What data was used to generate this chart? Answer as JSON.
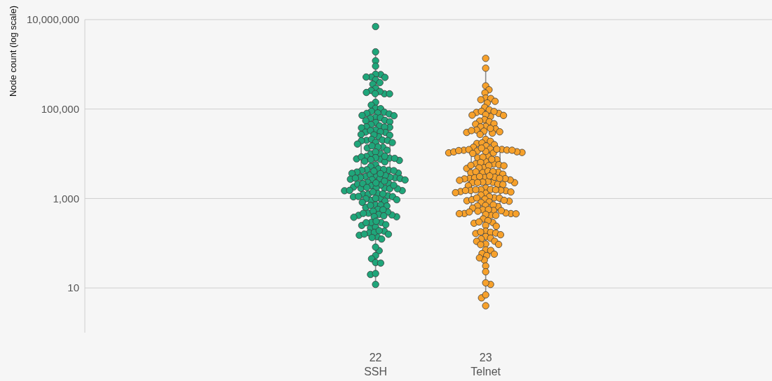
{
  "chart_data": {
    "type": "box",
    "ylabel": "Node count (log scale)",
    "categories": [
      "22\nSSH",
      "23\nTelnet"
    ],
    "log": true,
    "ylim": [
      1,
      10000000
    ],
    "yticks": [
      {
        "value": 10,
        "label": "10"
      },
      {
        "value": 1000,
        "label": "1,000"
      },
      {
        "value": 100000,
        "label": "100,000"
      },
      {
        "value": 10000000,
        "label": "10,000,000"
      }
    ],
    "grid": "y",
    "marker": "circle",
    "boxes": [
      {
        "low": 12,
        "q1": 880,
        "median": 3400,
        "q3": 31000,
        "high": 1900000
      },
      {
        "low": 6,
        "q1": 530,
        "median": 2800,
        "q3": 11800,
        "high": 820000
      }
    ],
    "series": [
      {
        "type": "scatter",
        "color": "#1fa67a",
        "x": [
          "22\nSSH",
          "22\nSSH",
          "22\nSSH",
          "22\nSSH",
          "22\nSSH",
          "22\nSSH",
          "22\nSSH",
          "22\nSSH",
          "22\nSSH",
          "22\nSSH",
          "22\nSSH",
          "22\nSSH",
          "22\nSSH",
          "22\nSSH",
          "22\nSSH",
          "22\nSSH",
          "22\nSSH",
          "22\nSSH",
          "22\nSSH",
          "22\nSSH",
          "22\nSSH",
          "22\nSSH",
          "22\nSSH",
          "22\nSSH",
          "22\nSSH",
          "22\nSSH",
          "22\nSSH",
          "22\nSSH",
          "22\nSSH",
          "22\nSSH",
          "22\nSSH",
          "22\nSSH",
          "22\nSSH",
          "22\nSSH",
          "22\nSSH",
          "22\nSSH",
          "22\nSSH",
          "22\nSSH",
          "22\nSSH",
          "22\nSSH",
          "22\nSSH",
          "22\nSSH",
          "22\nSSH",
          "22\nSSH",
          "22\nSSH",
          "22\nSSH",
          "22\nSSH",
          "22\nSSH",
          "22\nSSH",
          "22\nSSH",
          "22\nSSH",
          "22\nSSH",
          "22\nSSH",
          "22\nSSH",
          "22\nSSH",
          "22\nSSH",
          "22\nSSH",
          "22\nSSH",
          "22\nSSH",
          "22\nSSH",
          "22\nSSH",
          "22\nSSH",
          "22\nSSH",
          "22\nSSH",
          "22\nSSH",
          "22\nSSH",
          "22\nSSH",
          "22\nSSH",
          "22\nSSH",
          "22\nSSH",
          "22\nSSH",
          "22\nSSH",
          "22\nSSH",
          "22\nSSH",
          "22\nSSH",
          "22\nSSH",
          "22\nSSH",
          "22\nSSH",
          "22\nSSH",
          "22\nSSH",
          "22\nSSH",
          "22\nSSH",
          "22\nSSH",
          "22\nSSH",
          "22\nSSH",
          "22\nSSH",
          "22\nSSH",
          "22\nSSH",
          "22\nSSH",
          "22\nSSH",
          "22\nSSH",
          "22\nSSH",
          "22\nSSH",
          "22\nSSH",
          "22\nSSH",
          "22\nSSH",
          "22\nSSH",
          "22\nSSH",
          "22\nSSH",
          "22\nSSH",
          "22\nSSH",
          "22\nSSH",
          "22\nSSH",
          "22\nSSH",
          "22\nSSH",
          "22\nSSH",
          "22\nSSH",
          "22\nSSH",
          "22\nSSH",
          "22\nSSH",
          "22\nSSH",
          "22\nSSH",
          "22\nSSH",
          "22\nSSH",
          "22\nSSH",
          "22\nSSH",
          "22\nSSH",
          "22\nSSH",
          "22\nSSH",
          "22\nSSH",
          "22\nSSH",
          "22\nSSH",
          "22\nSSH",
          "22\nSSH",
          "22\nSSH",
          "22\nSSH",
          "22\nSSH",
          "22\nSSH",
          "22\nSSH",
          "22\nSSH",
          "22\nSSH",
          "22\nSSH",
          "22\nSSH",
          "22\nSSH",
          "22\nSSH",
          "22\nSSH",
          "22\nSSH",
          "22\nSSH",
          "22\nSSH",
          "22\nSSH",
          "22\nSSH",
          "22\nSSH",
          "22\nSSH",
          "22\nSSH",
          "22\nSSH",
          "22\nSSH",
          "22\nSSH",
          "22\nSSH",
          "22\nSSH",
          "22\nSSH",
          "22\nSSH",
          "22\nSSH",
          "22\nSSH",
          "22\nSSH",
          "22\nSSH",
          "22\nSSH",
          "22\nSSH",
          "22\nSSH",
          "22\nSSH",
          "22\nSSH",
          "22\nSSH",
          "22\nSSH",
          "22\nSSH",
          "22\nSSH",
          "22\nSSH",
          "22\nSSH",
          "22\nSSH",
          "22\nSSH",
          "22\nSSH",
          "22\nSSH",
          "22\nSSH",
          "22\nSSH",
          "22\nSSH",
          "22\nSSH",
          "22\nSSH",
          "22\nSSH",
          "22\nSSH",
          "22\nSSH",
          "22\nSSH",
          "22\nSSH",
          "22\nSSH",
          "22\nSSH",
          "22\nSSH",
          "22\nSSH",
          "22\nSSH",
          "22\nSSH"
        ],
        "values": [
          7000000,
          1900000,
          1200000,
          910000,
          590000,
          600000,
          520000,
          520000,
          510000,
          450000,
          390000,
          360000,
          290000,
          260000,
          235000,
          220000,
          247000,
          219000,
          221000,
          142000,
          123000,
          104000,
          102000,
          89000,
          82000,
          85000,
          78000,
          80000,
          72000,
          71000,
          65000,
          64000,
          62000,
          56000,
          55000,
          52000,
          50000,
          45000,
          40000,
          39000,
          38000,
          42000,
          39500,
          34000,
          30000,
          31000,
          30500,
          33000,
          24000,
          26000,
          26500,
          27000,
          20000,
          20200,
          19800,
          19500,
          21000,
          16500,
          18000,
          17800,
          14000,
          13500,
          14200,
          15000,
          10000,
          10100,
          11000,
          12000,
          7500,
          8200,
          6600,
          8000,
          8700,
          7100,
          7700,
          8500,
          6800,
          7900,
          8800,
          7400,
          5700,
          5200,
          4300,
          4400,
          4250,
          3700,
          3900,
          2900,
          3200,
          2800,
          2600,
          3100,
          2750,
          3400,
          3650,
          4600,
          4200,
          3000,
          2700,
          3300,
          4100,
          4450,
          3600,
          2650,
          2950,
          2850,
          2300,
          1800,
          1500,
          1700,
          2100,
          1650,
          2000,
          1690,
          2150,
          2450,
          1930,
          1710,
          2160,
          1660,
          1980,
          1760,
          2230,
          1490,
          1300,
          1150,
          910,
          1000,
          1240,
          1100,
          1520,
          1250,
          1090,
          1400,
          990,
          1270,
          1110,
          870,
          1010,
          820,
          940,
          720,
          680,
          630,
          715,
          700,
          570,
          420,
          470,
          390,
          440,
          520,
          395,
          430,
          500,
          465,
          380,
          560,
          410,
          290,
          220,
          292,
          250,
          288,
          230,
          310,
          260,
          170,
          140,
          186,
          124,
          159,
          175,
          151,
          134,
          191,
          160,
          68,
          82,
          53,
          45,
          37,
          36,
          20,
          21,
          12
        ]
      },
      {
        "type": "scatter",
        "color": "#f7a12b",
        "x": [
          "23\nTelnet",
          "23\nTelnet",
          "23\nTelnet",
          "23\nTelnet",
          "23\nTelnet",
          "23\nTelnet",
          "23\nTelnet",
          "23\nTelnet",
          "23\nTelnet",
          "23\nTelnet",
          "23\nTelnet",
          "23\nTelnet",
          "23\nTelnet",
          "23\nTelnet",
          "23\nTelnet",
          "23\nTelnet",
          "23\nTelnet",
          "23\nTelnet",
          "23\nTelnet",
          "23\nTelnet",
          "23\nTelnet",
          "23\nTelnet",
          "23\nTelnet",
          "23\nTelnet",
          "23\nTelnet",
          "23\nTelnet",
          "23\nTelnet",
          "23\nTelnet",
          "23\nTelnet",
          "23\nTelnet",
          "23\nTelnet",
          "23\nTelnet",
          "23\nTelnet",
          "23\nTelnet",
          "23\nTelnet",
          "23\nTelnet",
          "23\nTelnet",
          "23\nTelnet",
          "23\nTelnet",
          "23\nTelnet",
          "23\nTelnet",
          "23\nTelnet",
          "23\nTelnet",
          "23\nTelnet",
          "23\nTelnet",
          "23\nTelnet",
          "23\nTelnet",
          "23\nTelnet",
          "23\nTelnet",
          "23\nTelnet",
          "23\nTelnet",
          "23\nTelnet",
          "23\nTelnet",
          "23\nTelnet",
          "23\nTelnet",
          "23\nTelnet",
          "23\nTelnet",
          "23\nTelnet",
          "23\nTelnet",
          "23\nTelnet",
          "23\nTelnet",
          "23\nTelnet",
          "23\nTelnet",
          "23\nTelnet",
          "23\nTelnet",
          "23\nTelnet",
          "23\nTelnet",
          "23\nTelnet",
          "23\nTelnet",
          "23\nTelnet",
          "23\nTelnet",
          "23\nTelnet",
          "23\nTelnet",
          "23\nTelnet",
          "23\nTelnet",
          "23\nTelnet",
          "23\nTelnet",
          "23\nTelnet",
          "23\nTelnet",
          "23\nTelnet",
          "23\nTelnet",
          "23\nTelnet",
          "23\nTelnet",
          "23\nTelnet",
          "23\nTelnet",
          "23\nTelnet",
          "23\nTelnet",
          "23\nTelnet",
          "23\nTelnet",
          "23\nTelnet",
          "23\nTelnet",
          "23\nTelnet",
          "23\nTelnet",
          "23\nTelnet",
          "23\nTelnet",
          "23\nTelnet",
          "23\nTelnet",
          "23\nTelnet",
          "23\nTelnet",
          "23\nTelnet",
          "23\nTelnet",
          "23\nTelnet",
          "23\nTelnet",
          "23\nTelnet",
          "23\nTelnet",
          "23\nTelnet",
          "23\nTelnet",
          "23\nTelnet",
          "23\nTelnet",
          "23\nTelnet",
          "23\nTelnet",
          "23\nTelnet",
          "23\nTelnet",
          "23\nTelnet",
          "23\nTelnet",
          "23\nTelnet",
          "23\nTelnet",
          "23\nTelnet",
          "23\nTelnet",
          "23\nTelnet",
          "23\nTelnet",
          "23\nTelnet",
          "23\nTelnet",
          "23\nTelnet",
          "23\nTelnet",
          "23\nTelnet",
          "23\nTelnet",
          "23\nTelnet",
          "23\nTelnet",
          "23\nTelnet",
          "23\nTelnet",
          "23\nTelnet",
          "23\nTelnet",
          "23\nTelnet",
          "23\nTelnet",
          "23\nTelnet",
          "23\nTelnet",
          "23\nTelnet",
          "23\nTelnet",
          "23\nTelnet",
          "23\nTelnet",
          "23\nTelnet",
          "23\nTelnet",
          "23\nTelnet",
          "23\nTelnet",
          "23\nTelnet",
          "23\nTelnet",
          "23\nTelnet",
          "23\nTelnet",
          "23\nTelnet",
          "23\nTelnet",
          "23\nTelnet",
          "23\nTelnet",
          "23\nTelnet",
          "23\nTelnet",
          "23\nTelnet",
          "23\nTelnet",
          "23\nTelnet",
          "23\nTelnet",
          "23\nTelnet",
          "23\nTelnet",
          "23\nTelnet",
          "23\nTelnet",
          "23\nTelnet",
          "23\nTelnet",
          "23\nTelnet",
          "23\nTelnet",
          "23\nTelnet",
          "23\nTelnet",
          "23\nTelnet",
          "23\nTelnet",
          "23\nTelnet",
          "23\nTelnet",
          "23\nTelnet",
          "23\nTelnet",
          "23\nTelnet",
          "23\nTelnet",
          "23\nTelnet",
          "23\nTelnet",
          "23\nTelnet",
          "23\nTelnet",
          "23\nTelnet"
        ],
        "values": [
          1360000,
          820000,
          330000,
          270000,
          230000,
          176000,
          172000,
          162000,
          149000,
          137000,
          109000,
          96000,
          80000,
          88000,
          84000,
          89000,
          68000,
          73000,
          72000,
          75000,
          58000,
          54000,
          52000,
          46000,
          47000,
          41000,
          40000,
          36000,
          31000,
          30000,
          34000,
          29000,
          33000,
          32000,
          37000,
          27000,
          21000,
          19000,
          17000,
          17500,
          16000,
          15000,
          14000,
          10500,
          12000,
          11000,
          12500,
          10700,
          11800,
          11600,
          12800,
          10400,
          8900,
          12100,
          11300,
          12700,
          11100,
          12400,
          12000,
          13400,
          10200,
          8100,
          7400,
          5900,
          6700,
          5700,
          8400,
          7500,
          6000,
          4700,
          5400,
          6400,
          5500,
          4900,
          5450,
          4850,
          3900,
          3800,
          4100,
          3750,
          4000,
          3950,
          3500,
          2800,
          2260,
          2950,
          2300,
          2900,
          2400,
          3100,
          2100,
          2600,
          2780,
          2750,
          2250,
          3000,
          2550,
          2050,
          2320,
          3200,
          2270,
          2820,
          1720,
          1490,
          1320,
          1580,
          1930,
          1520,
          1430,
          1570,
          1530,
          1350,
          1590,
          1200,
          1510,
          1400,
          1560,
          1040,
          1100,
          890,
          870,
          1020,
          970,
          840,
          940,
          910,
          1030,
          810,
          660,
          700,
          680,
          610,
          720,
          540,
          460,
          475,
          560,
          455,
          420,
          520,
          565,
          462,
          418,
          500,
          458,
          440,
          535,
          350,
          280,
          300,
          290,
          240,
          320,
          250,
          165,
          186,
          175,
          141,
          125,
          169,
          179,
          155,
          130,
          111,
          110,
          94,
          96,
          93,
          71,
          59,
          53,
          69,
          57,
          42,
          47,
          31,
          23,
          12,
          13,
          6,
          7,
          4
        ]
      }
    ]
  }
}
